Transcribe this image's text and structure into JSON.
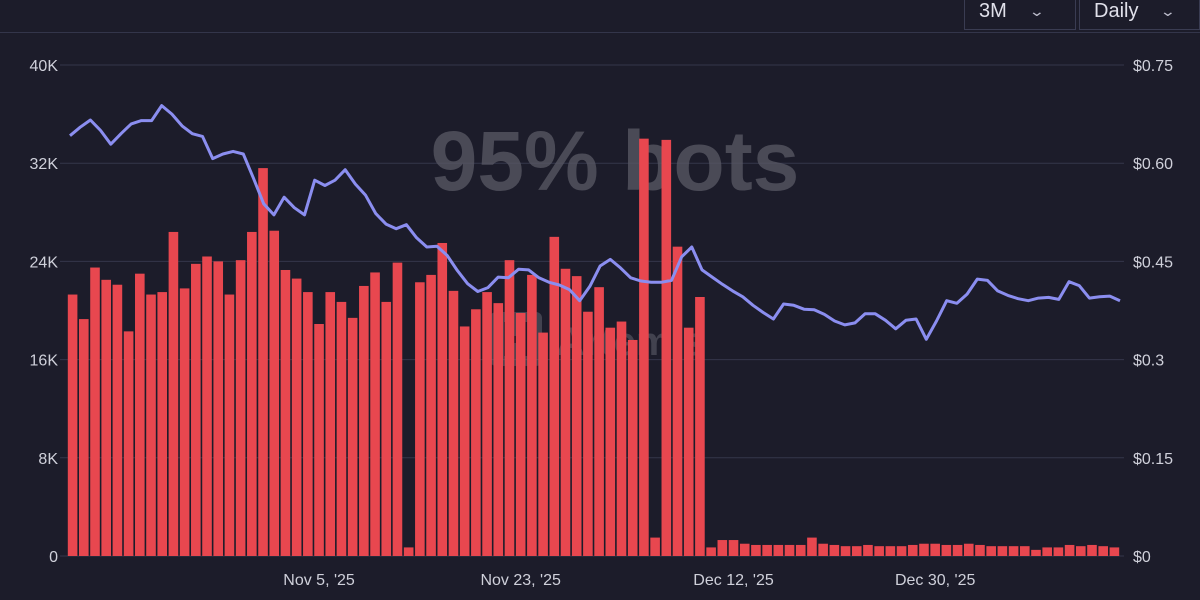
{
  "controls": {
    "range_value": "3M",
    "interval_value": "Daily"
  },
  "watermark": {
    "headline": "95% bots",
    "brand": "Artemis"
  },
  "colors": {
    "background": "#1c1c2a",
    "bar": "#e8474f",
    "line": "#8b8ef0",
    "grid": "#34364a",
    "tick_text": "#cfd0da"
  },
  "chart_data": {
    "type": "bar",
    "ylim_left": [
      0,
      40000
    ],
    "ylim_right": [
      0,
      0.75
    ],
    "yticks_left": [
      "0",
      "8K",
      "16K",
      "24K",
      "32K",
      "40K"
    ],
    "yticks_left_values": [
      0,
      8000,
      16000,
      24000,
      32000,
      40000
    ],
    "yticks_right": [
      "$0",
      "$0.15",
      "$0.3",
      "$0.45",
      "$0.60",
      "$0.75"
    ],
    "yticks_right_values": [
      0,
      0.15,
      0.3,
      0.45,
      0.6,
      0.75
    ],
    "xticks": [
      {
        "label": "Nov 5, '25",
        "index": 22
      },
      {
        "label": "Nov 23, '25",
        "index": 40
      },
      {
        "label": "Dec 12, '25",
        "index": 59
      },
      {
        "label": "Dec 30, '25",
        "index": 77
      }
    ],
    "grid": true,
    "series": [
      {
        "type": "bar",
        "axis": "left",
        "values": [
          21300,
          19300,
          23500,
          22500,
          22100,
          18300,
          23000,
          21300,
          21500,
          26400,
          21800,
          23800,
          24400,
          24000,
          21300,
          24100,
          26400,
          31600,
          26500,
          23300,
          22600,
          21500,
          18900,
          21500,
          20700,
          19400,
          22000,
          23100,
          20700,
          23900,
          700,
          22300,
          22900,
          25500,
          21600,
          18700,
          20100,
          21500,
          20600,
          24100,
          19800,
          22900,
          18200,
          26000,
          23400,
          22800,
          19900,
          21900,
          18600,
          19100,
          17600,
          34000,
          1500,
          33900,
          25200,
          18600,
          21100,
          700,
          1300,
          1300,
          1000,
          900,
          900,
          900,
          900,
          900,
          1500,
          1000,
          900,
          800,
          800,
          900,
          800,
          800,
          800,
          900,
          1000,
          1000,
          900,
          900,
          1000,
          900,
          800,
          800,
          800,
          800,
          500,
          700,
          700,
          900,
          800,
          900,
          800,
          700
        ]
      },
      {
        "type": "line",
        "axis": "right",
        "values": [
          0.642,
          0.655,
          0.666,
          0.65,
          0.629,
          0.645,
          0.66,
          0.665,
          0.665,
          0.688,
          0.675,
          0.657,
          0.645,
          0.641,
          0.607,
          0.614,
          0.618,
          0.614,
          0.577,
          0.538,
          0.521,
          0.548,
          0.532,
          0.521,
          0.574,
          0.566,
          0.574,
          0.59,
          0.568,
          0.551,
          0.523,
          0.507,
          0.5,
          0.506,
          0.486,
          0.472,
          0.473,
          0.459,
          0.436,
          0.416,
          0.404,
          0.41,
          0.426,
          0.425,
          0.438,
          0.437,
          0.425,
          0.418,
          0.414,
          0.407,
          0.39,
          0.412,
          0.443,
          0.453,
          0.44,
          0.425,
          0.42,
          0.418,
          0.418,
          0.421,
          0.457,
          0.472,
          0.437,
          0.426,
          0.415,
          0.405,
          0.396,
          0.383,
          0.372,
          0.362,
          0.385,
          0.383,
          0.377,
          0.376,
          0.369,
          0.359,
          0.353,
          0.356,
          0.37,
          0.37,
          0.36,
          0.347,
          0.36,
          0.362,
          0.331,
          0.359,
          0.39,
          0.386,
          0.4,
          0.423,
          0.421,
          0.405,
          0.398,
          0.393,
          0.39,
          0.394,
          0.395,
          0.392,
          0.419,
          0.413,
          0.394,
          0.396,
          0.397,
          0.39
        ]
      }
    ]
  }
}
